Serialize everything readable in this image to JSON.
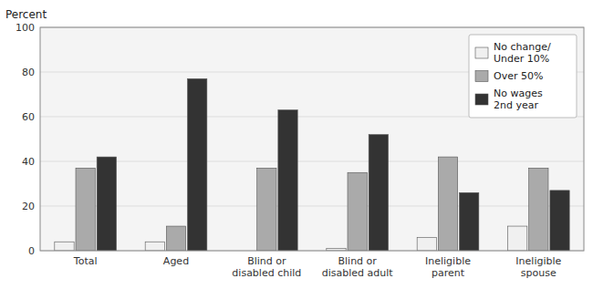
{
  "chart_data": {
    "type": "bar",
    "ylabel": "Percent",
    "categories": [
      "Total",
      "Aged",
      "Blind or\ndisabled child",
      "Blind or\ndisabled adult",
      "Ineligible\nparent",
      "Ineligible\nspouse"
    ],
    "series": [
      {
        "name": "No change/\nUnder 10%",
        "color": "#f0f0f0",
        "values": [
          4,
          4,
          0,
          1,
          6,
          11
        ]
      },
      {
        "name": "Over 50%",
        "color": "#aaaaaa",
        "values": [
          37,
          11,
          37,
          35,
          42,
          37
        ]
      },
      {
        "name": "No wages\n2nd year",
        "color": "#333333",
        "values": [
          42,
          77,
          63,
          52,
          26,
          27
        ]
      }
    ],
    "ylim": [
      0,
      100
    ],
    "yticks": [
      0,
      20,
      40,
      60,
      80,
      100
    ],
    "grid": true,
    "legend": "upper right"
  }
}
